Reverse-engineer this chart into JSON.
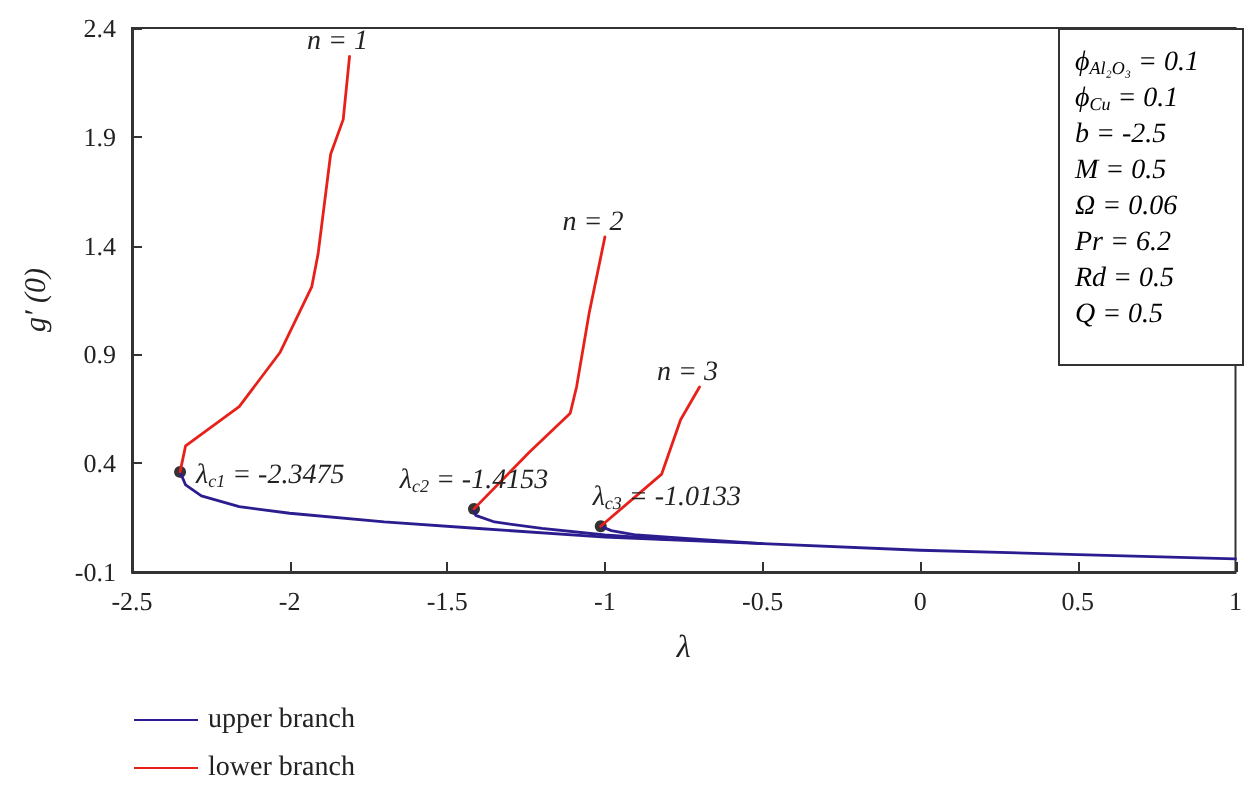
{
  "chart_data": {
    "type": "line",
    "xlabel": "λ",
    "ylabel": "g′ (0)",
    "xlim": [
      -2.5,
      1
    ],
    "xticks": [
      -2.5,
      -2,
      -1.5,
      -1,
      -0.5,
      0,
      0.5,
      1
    ],
    "ylim": [
      -0.1,
      2.4
    ],
    "yticks": [
      -0.1,
      0.4,
      0.9,
      1.4,
      1.9,
      2.4
    ],
    "grid": false,
    "legend": "bottom left",
    "marker": "none",
    "line_style": "solid",
    "series": [
      {
        "name": "upper branch",
        "color": "#2b1d8f",
        "x": [
          -2.3475,
          -2.33,
          -2.28,
          -2.16,
          -2,
          -1.7,
          -1.4,
          -1,
          -0.5,
          0,
          0.5,
          1
        ],
        "values": [
          0.36,
          0.3,
          0.25,
          0.2,
          0.17,
          0.13,
          0.1,
          0.06,
          0.03,
          0,
          -0.02,
          -0.04
        ]
      },
      {
        "color": "#2b1d8f",
        "x": [
          -1.4153,
          -1.41,
          -1.35,
          -1.2,
          -1,
          -0.8
        ],
        "values": [
          0.19,
          0.16,
          0.13,
          0.1,
          0.07,
          0.05
        ]
      },
      {
        "color": "#2b1d8f",
        "x": [
          -1.0133,
          -0.98,
          -0.9,
          -0.7,
          -0.5
        ],
        "values": [
          0.11,
          0.09,
          0.07,
          0.05,
          0.03
        ]
      },
      {
        "name": "lower branch",
        "color": "#e8201a",
        "x": [
          -2.3475,
          -2.33,
          -2.16,
          -2.03,
          -1.93,
          -1.91,
          -1.87,
          -1.83,
          -1.81
        ],
        "values": [
          0.36,
          0.48,
          0.66,
          0.91,
          1.21,
          1.36,
          1.82,
          1.98,
          2.27
        ]
      },
      {
        "color": "#e8201a",
        "x": [
          -1.4153,
          -1.24,
          -1.11,
          -1.09,
          -1.05,
          -1
        ],
        "values": [
          0.19,
          0.45,
          0.63,
          0.75,
          1.09,
          1.44
        ]
      },
      {
        "color": "#e8201a",
        "x": [
          -1.0133,
          -0.82,
          -0.76,
          -0.7
        ],
        "values": [
          0.11,
          0.35,
          0.6,
          0.75
        ]
      },
      {
        "type": "scatter",
        "marker": "circle",
        "color": "#000000",
        "x": [
          -2.3475,
          -1.4153,
          -1.0133
        ],
        "values": [
          0.36,
          0.19,
          0.11
        ]
      }
    ],
    "annotations": [
      {
        "text": "λ$_{c1}$ = -2.3475",
        "x": -2.3475,
        "y": 0.36
      },
      {
        "text": "λ$_{c2}$ = -1.4153",
        "x": -1.4153,
        "y": 0.19
      },
      {
        "text": "λ$_{c3}$ = -1.0133",
        "x": -1.0133,
        "y": 0.11
      },
      {
        "text": "n = 1",
        "x": -1.81,
        "y": 2.27
      },
      {
        "text": "n = 2",
        "x": -1,
        "y": 1.44
      },
      {
        "text": "n = 3",
        "x": -0.7,
        "y": 0.75
      },
      "ϕ$_{Al₂O₃}$ = 0.1",
      "ϕ$_{Cu}$ = 0.1",
      "b = -2.5",
      "M = 0.5",
      "Ω = 0.06",
      "Pr = 6.2",
      "Rd = 0.5",
      "Q = 0.5"
    ]
  }
}
